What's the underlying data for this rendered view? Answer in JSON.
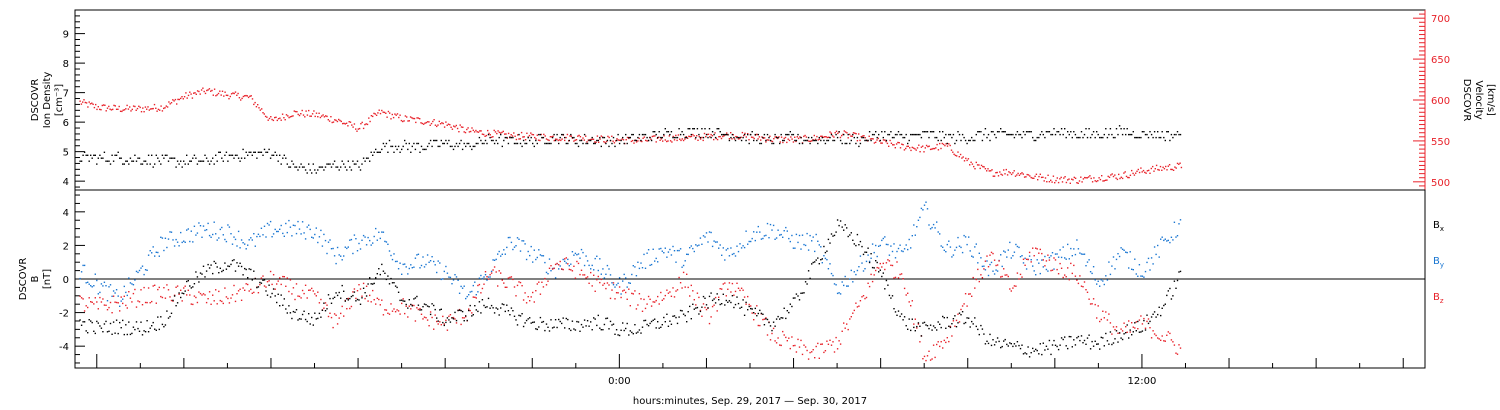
{
  "chart_data": [
    {
      "type": "scatter",
      "panel": "top",
      "left_ylabel": [
        "DSCOVR",
        "Ion Density",
        "[cm⁻³]"
      ],
      "right_ylabel": [
        "DSCOVR",
        "Velocity",
        "[km/s]"
      ],
      "left_ylim": [
        3.7,
        9.8
      ],
      "left_ticks": [
        "4",
        "5",
        "6",
        "7",
        "8",
        "9"
      ],
      "right_ylim": [
        490,
        710
      ],
      "right_ticks": [
        "500",
        "550",
        "600",
        "650",
        "700"
      ],
      "right_axis_color": "#e8222a",
      "xlim_hours": [
        -12.5,
        18.5
      ],
      "series": [
        {
          "color": "#000000",
          "axis": "left",
          "x": [
            -12.4,
            -11.5,
            -10.5,
            -9.5,
            -8.8,
            -8,
            -7.5,
            -7,
            -6.5,
            -6,
            -5.5,
            -5,
            -4.5,
            -4,
            -3.5,
            -3,
            -2.5,
            -2,
            -1.5,
            -1,
            -0.5,
            0,
            0.5,
            1,
            1.5,
            2,
            2.5,
            3,
            3.5,
            4,
            4.5,
            5,
            5.5,
            6,
            6.5,
            7,
            7.5,
            8,
            8.5,
            9,
            9.5,
            10,
            10.5,
            11,
            11.5,
            12,
            12.5,
            12.9
          ],
          "values": [
            4.8,
            4.8,
            4.7,
            4.7,
            4.9,
            5.0,
            4.5,
            4.4,
            4.6,
            4.5,
            5.2,
            5.2,
            5.2,
            5.3,
            5.2,
            5.4,
            5.4,
            5.4,
            5.5,
            5.4,
            5.4,
            5.4,
            5.5,
            5.6,
            5.7,
            5.7,
            5.6,
            5.5,
            5.4,
            5.5,
            5.4,
            5.5,
            5.4,
            5.6,
            5.5,
            5.6,
            5.5,
            5.5,
            5.6,
            5.6,
            5.6,
            5.7,
            5.6,
            5.6,
            5.7,
            5.6,
            5.6,
            5.6
          ]
        },
        {
          "color": "#e8222a",
          "axis": "right",
          "x": [
            -12.4,
            -12,
            -11.5,
            -11,
            -10.5,
            -10,
            -9.5,
            -9,
            -8.5,
            -8,
            -7.5,
            -7,
            -6.5,
            -6,
            -5.5,
            -5,
            -4.5,
            -4,
            -3.5,
            -3,
            -2.5,
            -2,
            -1.5,
            -1,
            -0.5,
            0,
            0.5,
            1,
            1.5,
            2,
            2.5,
            3,
            3.5,
            4,
            4.5,
            5,
            5.5,
            6,
            6.5,
            7,
            7.5,
            8,
            8.5,
            9,
            9.5,
            10,
            10.5,
            11,
            11.5,
            12,
            12.5,
            12.9
          ],
          "values": [
            598,
            592,
            590,
            590,
            592,
            605,
            612,
            607,
            604,
            575,
            585,
            583,
            576,
            566,
            586,
            578,
            575,
            571,
            563,
            560,
            557,
            556,
            555,
            555,
            553,
            552,
            551,
            554,
            554,
            556,
            558,
            556,
            553,
            552,
            554,
            560,
            555,
            549,
            544,
            541,
            545,
            525,
            512,
            513,
            507,
            504,
            503,
            506,
            508,
            514,
            518,
            520
          ]
        }
      ]
    },
    {
      "type": "scatter",
      "panel": "bottom",
      "left_ylabel": [
        "DSCOVR",
        "B",
        "[nT]"
      ],
      "ylim": [
        -5.3,
        5.3
      ],
      "ticks": [
        "-4",
        "-2",
        "0",
        "2",
        "4"
      ],
      "x_tick_labels": [
        "0:00",
        "12:00"
      ],
      "xlabel": "hours:minutes, Sep. 29, 2017 — Sep. 30, 2017",
      "xlim_hours": [
        -12.5,
        18.5
      ],
      "series": [
        {
          "name": "B",
          "subscript": "x",
          "color": "#000000",
          "x": [
            -12.4,
            -12,
            -11.5,
            -11,
            -10.5,
            -10,
            -9.5,
            -9,
            -8.5,
            -8,
            -7.5,
            -7,
            -6.5,
            -6,
            -5.5,
            -5,
            -4.5,
            -4,
            -3.5,
            -3,
            -2.5,
            -2,
            -1.5,
            -1,
            -0.5,
            0,
            0.5,
            1,
            1.5,
            2,
            2.5,
            3,
            3.5,
            4,
            4.5,
            5,
            5.5,
            6,
            6.5,
            7,
            7.5,
            8,
            8.5,
            9,
            9.5,
            10,
            10.5,
            11,
            11.5,
            12,
            12.5,
            12.9
          ],
          "values": [
            -2.6,
            -2.9,
            -2.8,
            -2.9,
            -2.5,
            -0.5,
            0.5,
            1.0,
            0.3,
            -0.8,
            -2.0,
            -2.4,
            -0.6,
            -1.2,
            0.6,
            -1.2,
            -1.5,
            -2.4,
            -2.0,
            -1.4,
            -2.1,
            -2.6,
            -2.7,
            -2.7,
            -2.5,
            -3.0,
            -2.9,
            -2.5,
            -2.2,
            -1.3,
            -1.0,
            -2.0,
            -2.6,
            -1.5,
            1.0,
            3.2,
            2.2,
            0.3,
            -2.5,
            -3.0,
            -2.5,
            -2.3,
            -3.7,
            -4.0,
            -4.2,
            -4.0,
            -3.6,
            -3.8,
            -3.2,
            -2.8,
            -1.5,
            0.4
          ]
        },
        {
          "name": "B",
          "subscript": "y",
          "color": "#1976d2",
          "x": [
            -12.4,
            -12,
            -11.5,
            -11,
            -10.5,
            -10,
            -9.5,
            -9,
            -8.5,
            -8,
            -7.5,
            -7,
            -6.5,
            -6,
            -5.5,
            -5,
            -4.5,
            -4,
            -3.5,
            -3,
            -2.5,
            -2,
            -1.5,
            -1,
            -0.5,
            0,
            0.5,
            1,
            1.5,
            2,
            2.5,
            3,
            3.5,
            4,
            4.5,
            5,
            5.5,
            6,
            6.5,
            7,
            7.5,
            8,
            8.5,
            9,
            9.5,
            10,
            10.5,
            11,
            11.5,
            12,
            12.5,
            12.9
          ],
          "values": [
            0.6,
            -0.3,
            -1.2,
            0.5,
            2.2,
            2.6,
            3.0,
            2.8,
            2.1,
            3.0,
            3.0,
            2.9,
            1.4,
            2.3,
            2.7,
            0.8,
            1.1,
            0.4,
            -1.0,
            0.5,
            2.3,
            1.5,
            0.6,
            1.6,
            0.8,
            -0.4,
            1.0,
            1.8,
            1.2,
            2.6,
            1.5,
            2.7,
            3.0,
            2.3,
            2.2,
            -0.6,
            0.8,
            2.2,
            1.4,
            4.2,
            1.8,
            2.2,
            0.5,
            1.8,
            0.7,
            1.2,
            1.9,
            -0.2,
            1.6,
            0.5,
            2.2,
            3.4
          ]
        },
        {
          "name": "B",
          "subscript": "z",
          "color": "#e8222a",
          "x": [
            -12.4,
            -12,
            -11.5,
            -11,
            -10.5,
            -10,
            -9.5,
            -9,
            -8.5,
            -8,
            -7.5,
            -7,
            -6.5,
            -6,
            -5.5,
            -5,
            -4.5,
            -4,
            -3.5,
            -3,
            -2.5,
            -2,
            -1.5,
            -1,
            -0.5,
            0,
            0.5,
            1,
            1.5,
            2,
            2.5,
            3,
            3.5,
            4,
            4.5,
            5,
            5.5,
            6,
            6.5,
            7,
            7.5,
            8,
            8.5,
            9,
            9.5,
            10,
            10.5,
            11,
            11.5,
            12,
            12.5,
            12.9
          ],
          "values": [
            -1.4,
            -1.6,
            -1.4,
            -1.0,
            -0.8,
            -0.9,
            -1.2,
            -1.0,
            -0.6,
            0.0,
            -0.6,
            -1.1,
            -2.6,
            -0.4,
            -1.6,
            -1.6,
            -2.3,
            -2.6,
            -2.0,
            0.4,
            -0.3,
            -1.2,
            1.0,
            0.6,
            -0.3,
            -0.8,
            -1.4,
            -1.0,
            0.0,
            -2.3,
            -0.2,
            -1.6,
            -3.3,
            -4.0,
            -4.4,
            -3.7,
            -1.5,
            1.1,
            0.3,
            -4.6,
            -3.5,
            -0.9,
            1.4,
            -0.6,
            1.8,
            0.8,
            0.3,
            -2.0,
            -3.2,
            -2.6,
            -3.4,
            -4.2
          ]
        }
      ]
    }
  ]
}
